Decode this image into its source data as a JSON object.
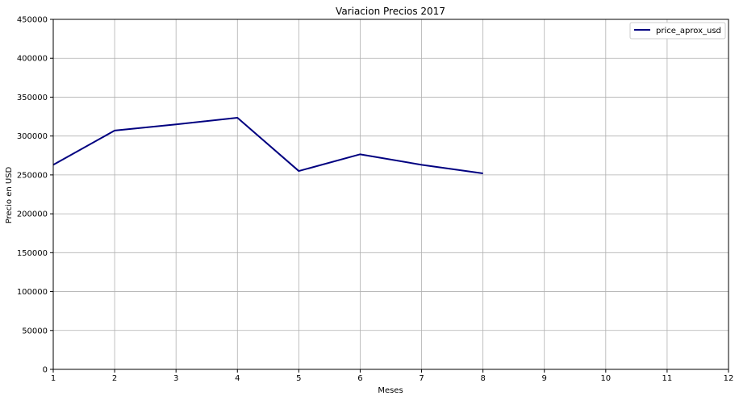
{
  "chart_data": {
    "type": "line",
    "title": "Variacion Precios 2017",
    "xlabel": "Meses",
    "ylabel": "Precio en USD",
    "xlim": [
      1,
      12
    ],
    "ylim": [
      0,
      450000
    ],
    "x_ticks": [
      "1",
      "2",
      "3",
      "4",
      "5",
      "6",
      "7",
      "8",
      "9",
      "10",
      "11",
      "12"
    ],
    "y_ticks": [
      "0",
      "50000",
      "100000",
      "150000",
      "200000",
      "250000",
      "300000",
      "350000",
      "400000",
      "450000"
    ],
    "grid": true,
    "legend_position": "top-right",
    "series": [
      {
        "name": "price_aprox_usd",
        "color": "#000080",
        "x": [
          1,
          2,
          3,
          4,
          5,
          6,
          7,
          8
        ],
        "values": [
          263000,
          307000,
          315000,
          323500,
          255000,
          276500,
          263000,
          252000
        ]
      }
    ]
  }
}
